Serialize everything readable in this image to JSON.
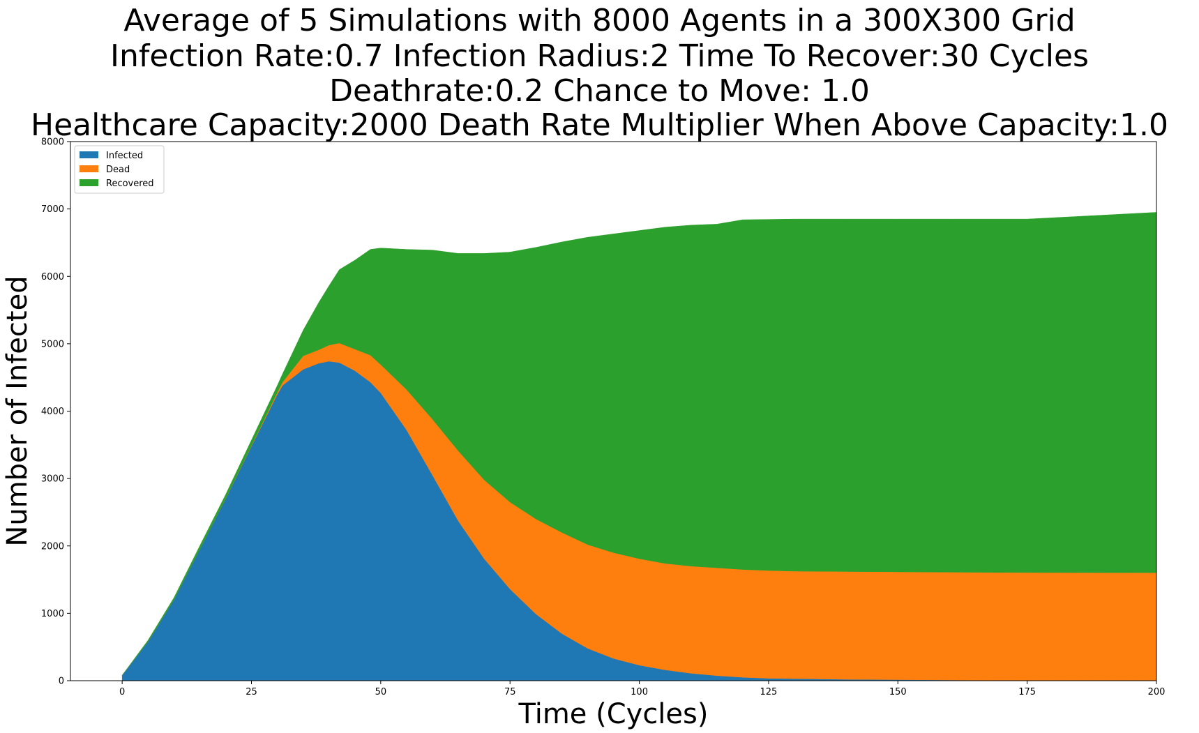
{
  "chart_data": {
    "type": "area",
    "stacked": true,
    "title_lines": [
      "Average of 5 Simulations with 8000 Agents in a 300X300 Grid",
      "Infection Rate:0.7  Infection Radius:2  Time To Recover:30 Cycles",
      "Deathrate:0.2  Chance to Move: 1.0",
      "Healthcare Capacity:2000  Death Rate Multiplier When Above Capacity:1.0"
    ],
    "xlabel": "Time (Cycles)",
    "ylabel": "Number of Infected",
    "xlim": [
      -10,
      200
    ],
    "ylim": [
      0,
      8000
    ],
    "xticks": [
      0,
      25,
      50,
      75,
      100,
      125,
      150,
      175,
      200
    ],
    "yticks": [
      0,
      1000,
      2000,
      3000,
      4000,
      5000,
      6000,
      7000,
      8000
    ],
    "grid": false,
    "legend_position": "top-left",
    "x": [
      0,
      5,
      10,
      15,
      20,
      25,
      30,
      31,
      35,
      38,
      40,
      42,
      45,
      48,
      50,
      55,
      60,
      65,
      70,
      75,
      80,
      85,
      90,
      95,
      100,
      105,
      110,
      115,
      120,
      125,
      130,
      140,
      150,
      160,
      175,
      200
    ],
    "series": [
      {
        "name": "Infected",
        "color": "#1f77b4",
        "values": [
          80,
          580,
          1200,
          1950,
          2700,
          3480,
          4250,
          4380,
          4620,
          4710,
          4740,
          4720,
          4600,
          4430,
          4270,
          3720,
          3050,
          2370,
          1810,
          1360,
          990,
          700,
          480,
          330,
          230,
          160,
          110,
          75,
          50,
          35,
          30,
          20,
          15,
          10,
          5,
          3
        ]
      },
      {
        "name": "Dead",
        "color": "#ff7f0e",
        "values": [
          0,
          0,
          0,
          0,
          5,
          10,
          30,
          50,
          200,
          200,
          240,
          290,
          320,
          400,
          420,
          600,
          830,
          1040,
          1170,
          1290,
          1410,
          1500,
          1540,
          1570,
          1580,
          1580,
          1590,
          1600,
          1600,
          1600,
          1595,
          1600,
          1600,
          1600,
          1600,
          1600
        ]
      },
      {
        "name": "Recovered",
        "color": "#2ca02c",
        "values": [
          0,
          20,
          30,
          50,
          55,
          80,
          100,
          120,
          380,
          700,
          880,
          1090,
          1320,
          1570,
          1730,
          2080,
          2510,
          2930,
          3360,
          3710,
          4030,
          4310,
          4560,
          4730,
          4870,
          4990,
          5060,
          5100,
          5190,
          5210,
          5225,
          5230,
          5235,
          5240,
          5245,
          5347
        ]
      }
    ]
  }
}
